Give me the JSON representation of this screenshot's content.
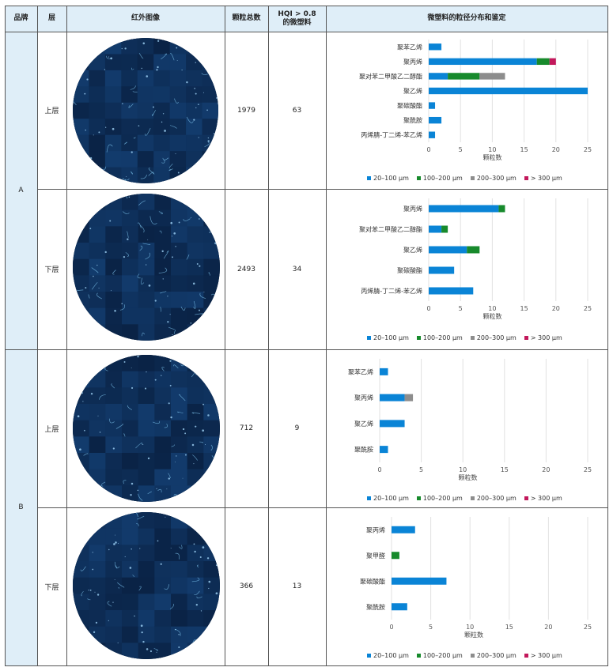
{
  "headers": {
    "brand": "品牌",
    "layer": "层",
    "ir_image": "红外图像",
    "total": "颗粒总数",
    "hqi_line1": "HQI > 0.8",
    "hqi_line2": "的微塑料",
    "dist": "微塑料的粒径分布和鉴定"
  },
  "brands": [
    "A",
    "B"
  ],
  "rows": [
    {
      "brand": "A",
      "layer": "上层",
      "total": "1979",
      "hqi": "63"
    },
    {
      "brand": "A",
      "layer": "下层",
      "total": "2493",
      "hqi": "34"
    },
    {
      "brand": "B",
      "layer": "上层",
      "total": "712",
      "hqi": "9"
    },
    {
      "brand": "B",
      "layer": "下层",
      "total": "366",
      "hqi": "13"
    }
  ],
  "legend": [
    {
      "label": "20–100 μm",
      "color": "#0a84d6"
    },
    {
      "label": "100–200 μm",
      "color": "#178a2c"
    },
    {
      "label": "200–300 μm",
      "color": "#8d8d8d"
    },
    {
      "label": "> 300 μm",
      "color": "#c2185b"
    }
  ],
  "chart_data": [
    {
      "type": "bar",
      "orientation": "horizontal",
      "stacked": true,
      "categories": [
        "聚苯乙烯",
        "聚丙烯",
        "聚对苯二甲酸乙二醇酯",
        "聚乙烯",
        "聚碳酸酯",
        "聚酰胺",
        "丙烯腈-丁二烯-苯乙烯"
      ],
      "series": [
        {
          "name": "20–100 μm",
          "values": [
            2,
            17,
            3,
            25,
            1,
            2,
            1
          ]
        },
        {
          "name": "100–200 μm",
          "values": [
            0,
            2,
            5,
            0,
            0,
            0,
            0
          ]
        },
        {
          "name": "200–300 μm",
          "values": [
            0,
            0,
            4,
            0,
            0,
            0,
            0
          ]
        },
        {
          "name": "> 300 μm",
          "values": [
            0,
            1,
            0,
            0,
            0,
            0,
            0
          ]
        }
      ],
      "xlabel": "颗粒数",
      "xlim": [
        0,
        25
      ],
      "xticks": [
        0,
        5,
        10,
        15,
        20,
        25
      ],
      "grid": true,
      "legend": "bottom"
    },
    {
      "type": "bar",
      "orientation": "horizontal",
      "stacked": true,
      "categories": [
        "聚丙烯",
        "聚对苯二甲酸乙二醇酯",
        "聚乙烯",
        "聚碳酸酯",
        "丙烯腈-丁二烯-苯乙烯"
      ],
      "series": [
        {
          "name": "20–100 μm",
          "values": [
            11,
            2,
            6,
            4,
            7
          ]
        },
        {
          "name": "100–200 μm",
          "values": [
            1,
            1,
            2,
            0,
            0
          ]
        },
        {
          "name": "200–300 μm",
          "values": [
            0,
            0,
            0,
            0,
            0
          ]
        },
        {
          "name": "> 300 μm",
          "values": [
            0,
            0,
            0,
            0,
            0
          ]
        }
      ],
      "xlabel": "颗粒数",
      "xlim": [
        0,
        25
      ],
      "xticks": [
        0,
        5,
        10,
        15,
        20,
        25
      ],
      "grid": true,
      "legend": "bottom"
    },
    {
      "type": "bar",
      "orientation": "horizontal",
      "stacked": true,
      "categories": [
        "聚苯乙烯",
        "聚丙烯",
        "聚乙烯",
        "聚酰胺"
      ],
      "series": [
        {
          "name": "20–100 μm",
          "values": [
            1,
            3,
            3,
            1
          ]
        },
        {
          "name": "100–200 μm",
          "values": [
            0,
            0,
            0,
            0
          ]
        },
        {
          "name": "200–300 μm",
          "values": [
            0,
            1,
            0,
            0
          ]
        },
        {
          "name": "> 300 μm",
          "values": [
            0,
            0,
            0,
            0
          ]
        }
      ],
      "xlabel": "颗粒数",
      "xlim": [
        0,
        25
      ],
      "xticks": [
        0,
        5,
        10,
        15,
        20,
        25
      ],
      "grid": true,
      "legend": "bottom"
    },
    {
      "type": "bar",
      "orientation": "horizontal",
      "stacked": true,
      "categories": [
        "聚丙烯",
        "聚甲醛",
        "聚碳酸酯",
        "聚酰胺"
      ],
      "series": [
        {
          "name": "20–100 μm",
          "values": [
            3,
            0,
            7,
            2
          ]
        },
        {
          "name": "100–200 μm",
          "values": [
            0,
            1,
            0,
            0
          ]
        },
        {
          "name": "200–300 μm",
          "values": [
            0,
            0,
            0,
            0
          ]
        },
        {
          "name": "> 300 μm",
          "values": [
            0,
            0,
            0,
            0
          ]
        }
      ],
      "xlabel": "颗粒数",
      "xlim": [
        0,
        25
      ],
      "xticks": [
        0,
        5,
        10,
        15,
        20,
        25
      ],
      "grid": true,
      "legend": "bottom"
    }
  ]
}
